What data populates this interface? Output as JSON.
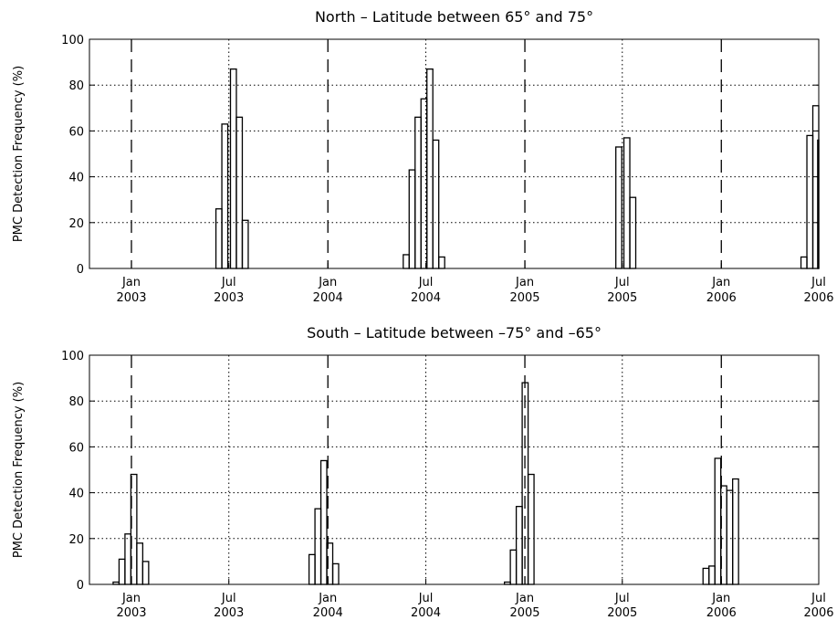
{
  "chart_data": [
    {
      "type": "bar",
      "title": "North  –  Latitude between 65° and 75°",
      "ylabel": "PMC Detection Frequency (%)",
      "xlabel": "",
      "ylim": [
        0,
        100
      ],
      "yticks": [
        0,
        20,
        40,
        60,
        80,
        100
      ],
      "xlim": [
        "2002-10-15",
        "2006-07-01"
      ],
      "xticks": [
        {
          "date": "2003-01-01",
          "month": "Jan",
          "year": "2003",
          "line": "dashed"
        },
        {
          "date": "2003-07-01",
          "month": "Jul",
          "year": "2003",
          "line": "dotted"
        },
        {
          "date": "2004-01-01",
          "month": "Jan",
          "year": "2004",
          "line": "dashed"
        },
        {
          "date": "2004-07-01",
          "month": "Jul",
          "year": "2004",
          "line": "dotted"
        },
        {
          "date": "2005-01-01",
          "month": "Jan",
          "year": "2005",
          "line": "dashed"
        },
        {
          "date": "2005-07-01",
          "month": "Jul",
          "year": "2005",
          "line": "dotted"
        },
        {
          "date": "2006-01-01",
          "month": "Jan",
          "year": "2006",
          "line": "dashed"
        },
        {
          "date": "2006-07-01",
          "month": "Jul",
          "year": "2006",
          "line": "dotted"
        }
      ],
      "grid": "dotted horizontal",
      "bin_width_days": 11,
      "bars": [
        {
          "start": "2003-06-07",
          "value": 26
        },
        {
          "start": "2003-06-18",
          "value": 63
        },
        {
          "start": "2003-07-04",
          "value": 87
        },
        {
          "start": "2003-07-15",
          "value": 66
        },
        {
          "start": "2003-07-26",
          "value": 21
        },
        {
          "start": "2004-05-20",
          "value": 6
        },
        {
          "start": "2004-05-31",
          "value": 43
        },
        {
          "start": "2004-06-11",
          "value": 66
        },
        {
          "start": "2004-06-22",
          "value": 74
        },
        {
          "start": "2004-07-03",
          "value": 87
        },
        {
          "start": "2004-07-14",
          "value": 56
        },
        {
          "start": "2004-07-25",
          "value": 5
        },
        {
          "start": "2005-06-19",
          "value": 53
        },
        {
          "start": "2005-07-04",
          "value": 57
        },
        {
          "start": "2005-07-15",
          "value": 31
        },
        {
          "start": "2006-05-29",
          "value": 5
        },
        {
          "start": "2006-06-09",
          "value": 58
        },
        {
          "start": "2006-06-20",
          "value": 71
        },
        {
          "start": "2006-06-29",
          "value": 56
        }
      ]
    },
    {
      "type": "bar",
      "title": "South  –  Latitude between –75° and –65°",
      "ylabel": "PMC Detection Frequency (%)",
      "xlabel": "",
      "ylim": [
        0,
        100
      ],
      "yticks": [
        0,
        20,
        40,
        60,
        80,
        100
      ],
      "xlim": [
        "2002-10-15",
        "2006-07-01"
      ],
      "xticks": [
        {
          "date": "2003-01-01",
          "month": "Jan",
          "year": "2003",
          "line": "dashed"
        },
        {
          "date": "2003-07-01",
          "month": "Jul",
          "year": "2003",
          "line": "dotted"
        },
        {
          "date": "2004-01-01",
          "month": "Jan",
          "year": "2004",
          "line": "dashed"
        },
        {
          "date": "2004-07-01",
          "month": "Jul",
          "year": "2004",
          "line": "dotted"
        },
        {
          "date": "2005-01-01",
          "month": "Jan",
          "year": "2005",
          "line": "dashed"
        },
        {
          "date": "2005-07-01",
          "month": "Jul",
          "year": "2005",
          "line": "dotted"
        },
        {
          "date": "2006-01-01",
          "month": "Jan",
          "year": "2006",
          "line": "dashed"
        },
        {
          "date": "2006-07-01",
          "month": "Jul",
          "year": "2006",
          "line": "dotted"
        }
      ],
      "grid": "dotted horizontal",
      "bin_width_days": 11,
      "bars": [
        {
          "start": "2002-11-28",
          "value": 1
        },
        {
          "start": "2002-12-09",
          "value": 11
        },
        {
          "start": "2002-12-20",
          "value": 22
        },
        {
          "start": "2002-12-31",
          "value": 48
        },
        {
          "start": "2003-01-11",
          "value": 18
        },
        {
          "start": "2003-01-22",
          "value": 10
        },
        {
          "start": "2003-11-27",
          "value": 13
        },
        {
          "start": "2003-12-08",
          "value": 33
        },
        {
          "start": "2003-12-19",
          "value": 54
        },
        {
          "start": "2003-12-30",
          "value": 18
        },
        {
          "start": "2004-01-10",
          "value": 9
        },
        {
          "start": "2004-11-24",
          "value": 1
        },
        {
          "start": "2004-12-05",
          "value": 15
        },
        {
          "start": "2004-12-16",
          "value": 34
        },
        {
          "start": "2004-12-27",
          "value": 88
        },
        {
          "start": "2005-01-07",
          "value": 48
        },
        {
          "start": "2005-11-28",
          "value": 7
        },
        {
          "start": "2005-12-09",
          "value": 8
        },
        {
          "start": "2005-12-20",
          "value": 55
        },
        {
          "start": "2005-12-31",
          "value": 43
        },
        {
          "start": "2006-01-11",
          "value": 41
        },
        {
          "start": "2006-01-22",
          "value": 46
        }
      ]
    }
  ]
}
